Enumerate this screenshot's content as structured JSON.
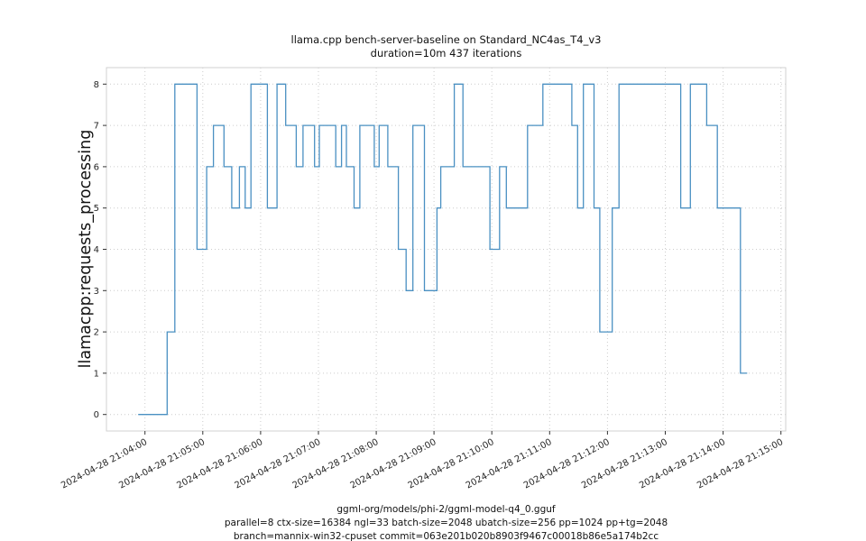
{
  "chart_data": {
    "type": "line",
    "step": "post",
    "title": "llama.cpp bench-server-baseline on Standard_NC4as_T4_v3",
    "subtitle": "duration=10m 437 iterations",
    "ylabel": "llamacpp:requests_processing",
    "xlabel": "",
    "grid": true,
    "legend": "none",
    "x_unit": "seconds since 2024-04-28 21:04:00",
    "xlim": [
      -40,
      665
    ],
    "ylim": [
      -0.4,
      8.4
    ],
    "x_ticks": [
      0,
      60,
      120,
      180,
      240,
      300,
      360,
      420,
      480,
      540,
      600,
      660
    ],
    "x_tick_labels": [
      "2024-04-28 21:04:00",
      "2024-04-28 21:05:00",
      "2024-04-28 21:06:00",
      "2024-04-28 21:07:00",
      "2024-04-28 21:08:00",
      "2024-04-28 21:09:00",
      "2024-04-28 21:10:00",
      "2024-04-28 21:11:00",
      "2024-04-28 21:12:00",
      "2024-04-28 21:13:00",
      "2024-04-28 21:14:00",
      "2024-04-28 21:15:00"
    ],
    "y_ticks": [
      0,
      1,
      2,
      3,
      4,
      5,
      6,
      7,
      8
    ],
    "series": [
      {
        "name": "llamacpp:requests_processing",
        "color": "#4a90c2",
        "points": [
          [
            -7,
            0
          ],
          [
            23,
            2
          ],
          [
            31,
            8
          ],
          [
            54,
            4
          ],
          [
            64,
            6
          ],
          [
            71,
            7
          ],
          [
            82,
            6
          ],
          [
            90,
            5
          ],
          [
            98,
            6
          ],
          [
            104,
            5
          ],
          [
            110,
            8
          ],
          [
            127,
            5
          ],
          [
            137,
            8
          ],
          [
            146,
            7
          ],
          [
            157,
            6
          ],
          [
            164,
            7
          ],
          [
            176,
            6
          ],
          [
            181,
            7
          ],
          [
            198,
            6
          ],
          [
            204,
            7
          ],
          [
            209,
            6
          ],
          [
            217,
            5
          ],
          [
            223,
            7
          ],
          [
            238,
            6
          ],
          [
            243,
            7
          ],
          [
            252,
            6
          ],
          [
            263,
            4
          ],
          [
            271,
            3
          ],
          [
            278,
            7
          ],
          [
            290,
            3
          ],
          [
            303,
            5
          ],
          [
            307,
            6
          ],
          [
            321,
            8
          ],
          [
            330,
            6
          ],
          [
            358,
            4
          ],
          [
            368,
            6
          ],
          [
            375,
            5
          ],
          [
            397,
            7
          ],
          [
            413,
            8
          ],
          [
            443,
            7
          ],
          [
            449,
            5
          ],
          [
            455,
            8
          ],
          [
            466,
            5
          ],
          [
            472,
            2
          ],
          [
            485,
            5
          ],
          [
            492,
            8
          ],
          [
            556,
            5
          ],
          [
            566,
            8
          ],
          [
            583,
            7
          ],
          [
            594,
            5
          ],
          [
            618,
            1
          ],
          [
            625,
            1
          ]
        ]
      }
    ],
    "footer_lines": [
      "ggml-org/models/phi-2/ggml-model-q4_0.gguf",
      "parallel=8 ctx-size=16384 ngl=33 batch-size=2048 ubatch-size=256 pp=1024 pp+tg=2048",
      "branch=mannix-win32-cpuset commit=063e201b020b8903f9467c00018b86e5a174b2cc"
    ],
    "colors": {
      "grid": "#cccccc",
      "frame": "#d2d2d2",
      "tick": "#333333",
      "text": "#262626"
    }
  }
}
